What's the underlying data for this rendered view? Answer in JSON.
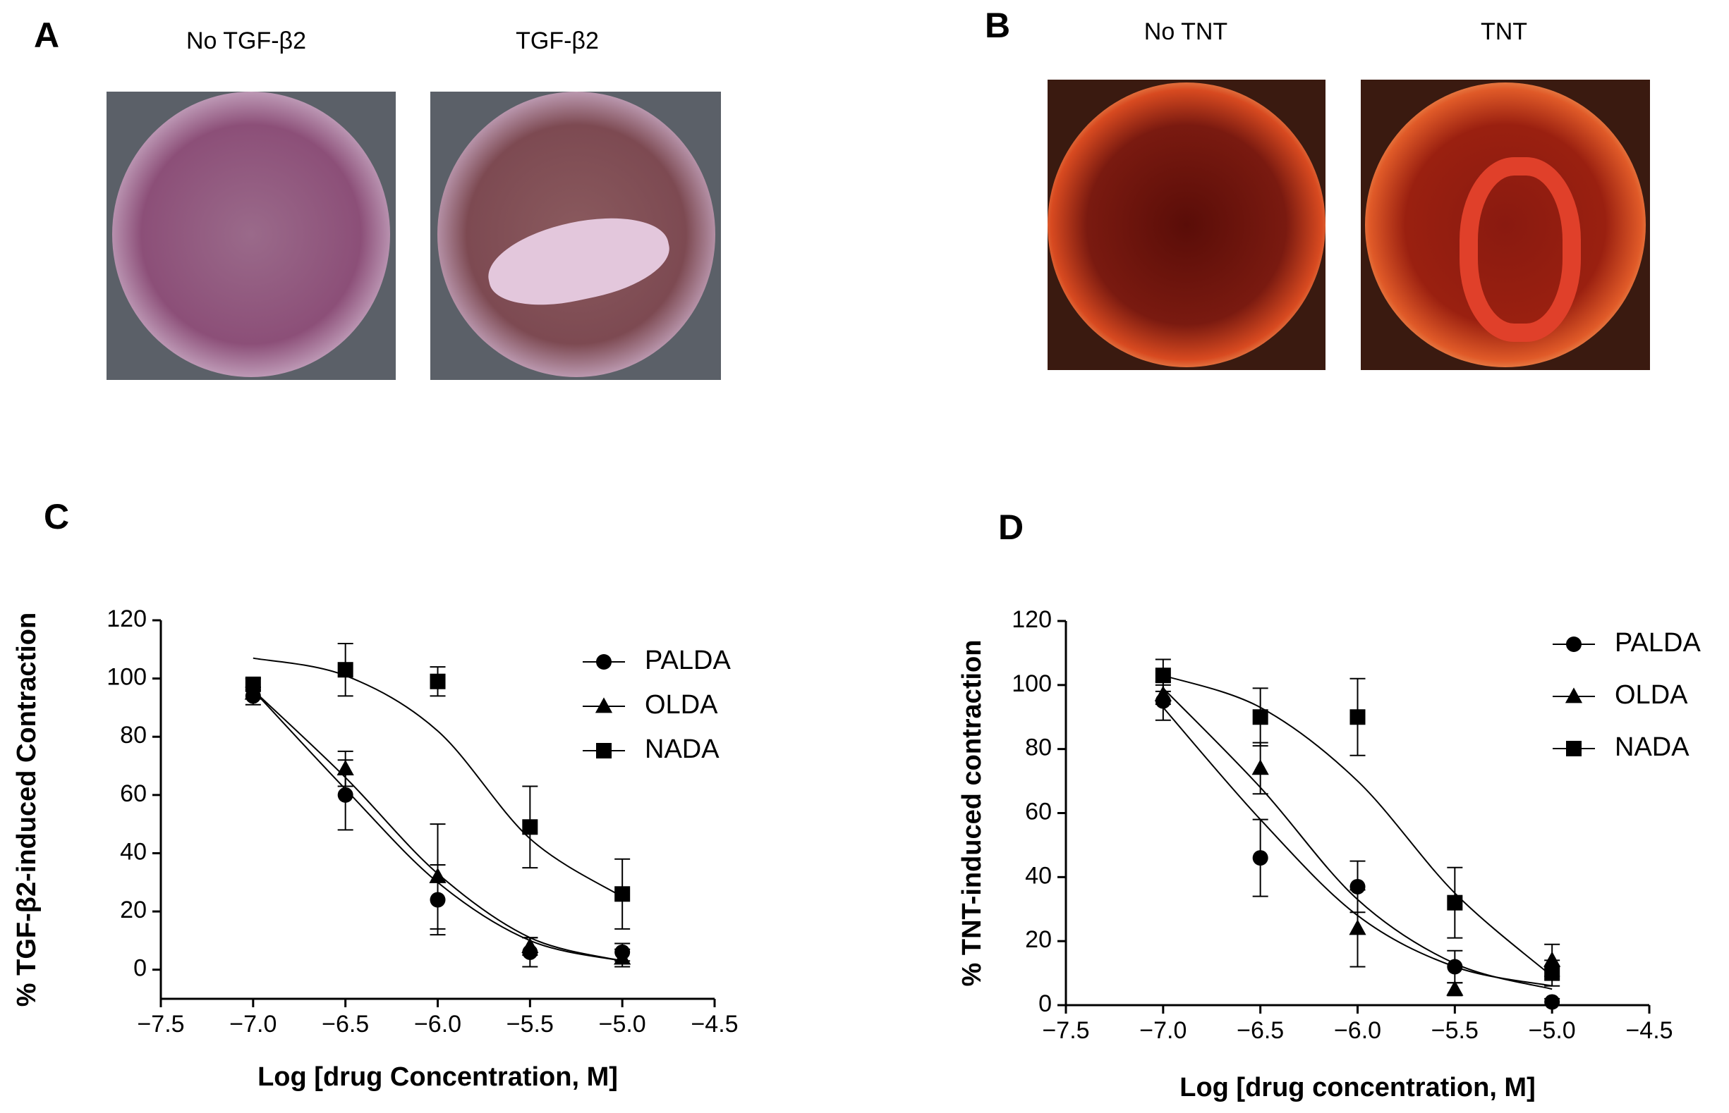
{
  "panels": {
    "a": {
      "label": "A",
      "captions": [
        "No TGF-β2",
        "TGF-β2"
      ]
    },
    "b": {
      "label": "B",
      "captions": [
        "No TNT",
        "TNT"
      ]
    },
    "c": {
      "label": "C"
    },
    "d": {
      "label": "D"
    }
  },
  "chart_data": [
    {
      "type": "scatter",
      "x_label": "Log [drug Concentration, M]",
      "y_label": "% TGF-β2-induced Contraction",
      "x": [
        -7,
        -6.5,
        -6,
        -5.5,
        -5
      ],
      "xlim": [
        -7.5,
        -4.5
      ],
      "xticks": [
        {
          "value": -7.5,
          "label": "−7.5"
        },
        {
          "value": -7,
          "label": "−7.0"
        },
        {
          "value": -6.5,
          "label": "−6.5"
        },
        {
          "value": -6,
          "label": "−6.0"
        },
        {
          "value": -5.5,
          "label": "−5.5"
        },
        {
          "value": -5,
          "label": "−5.0"
        },
        {
          "value": -4.5,
          "label": "−4.5"
        }
      ],
      "ylim": [
        -10,
        120
      ],
      "yticks": [
        0,
        20,
        40,
        60,
        80,
        100,
        120
      ],
      "series": [
        {
          "name": "PALDA",
          "marker": "circle",
          "color": "#000000",
          "values": [
            94,
            60,
            24,
            6,
            6
          ],
          "errors": [
            3,
            12,
            12,
            5,
            3
          ],
          "curve": [
            96,
            62,
            30,
            10,
            3
          ]
        },
        {
          "name": "OLDA",
          "marker": "triangle",
          "color": "#000000",
          "values": [
            95,
            69,
            32,
            8,
            4
          ],
          "errors": [
            2,
            6,
            18,
            3,
            3
          ],
          "curve": [
            96,
            66,
            33,
            11,
            3
          ]
        },
        {
          "name": "NADA",
          "marker": "square",
          "color": "#000000",
          "values": [
            98,
            103,
            99,
            49,
            26
          ],
          "errors": [
            2,
            9,
            5,
            14,
            12
          ],
          "curve": [
            107,
            101,
            82,
            45,
            25
          ]
        }
      ]
    },
    {
      "type": "scatter",
      "x_label": "Log [drug concentration, M]",
      "y_label": "% TNT-induced contraction",
      "x": [
        -7,
        -6.5,
        -6,
        -5.5,
        -5
      ],
      "xlim": [
        -7.5,
        -4.5
      ],
      "xticks": [
        {
          "value": -7.5,
          "label": "−7.5"
        },
        {
          "value": -7,
          "label": "−7.0"
        },
        {
          "value": -6.5,
          "label": "−6.5"
        },
        {
          "value": -6,
          "label": "−6.0"
        },
        {
          "value": -5.5,
          "label": "−5.5"
        },
        {
          "value": -5,
          "label": "−5.0"
        },
        {
          "value": -4.5,
          "label": "−4.5"
        }
      ],
      "ylim": [
        0,
        120
      ],
      "yticks": [
        0,
        20,
        40,
        60,
        80,
        100,
        120
      ],
      "series": [
        {
          "name": "PALDA",
          "marker": "circle",
          "color": "#000000",
          "values": [
            95,
            46,
            37,
            12,
            1
          ],
          "errors": [
            6,
            12,
            8,
            5,
            1
          ],
          "curve": [
            93,
            58,
            28,
            12,
            6
          ]
        },
        {
          "name": "OLDA",
          "marker": "triangle",
          "color": "#000000",
          "values": [
            97,
            74,
            24,
            5,
            14
          ],
          "errors": [
            3,
            8,
            12,
            2,
            5
          ],
          "curve": [
            99,
            68,
            33,
            13,
            5
          ]
        },
        {
          "name": "NADA",
          "marker": "square",
          "color": "#000000",
          "values": [
            103,
            90,
            90,
            32,
            10
          ],
          "errors": [
            5,
            9,
            12,
            11,
            4
          ],
          "curve": [
            103,
            93,
            70,
            35,
            9
          ]
        }
      ]
    }
  ]
}
